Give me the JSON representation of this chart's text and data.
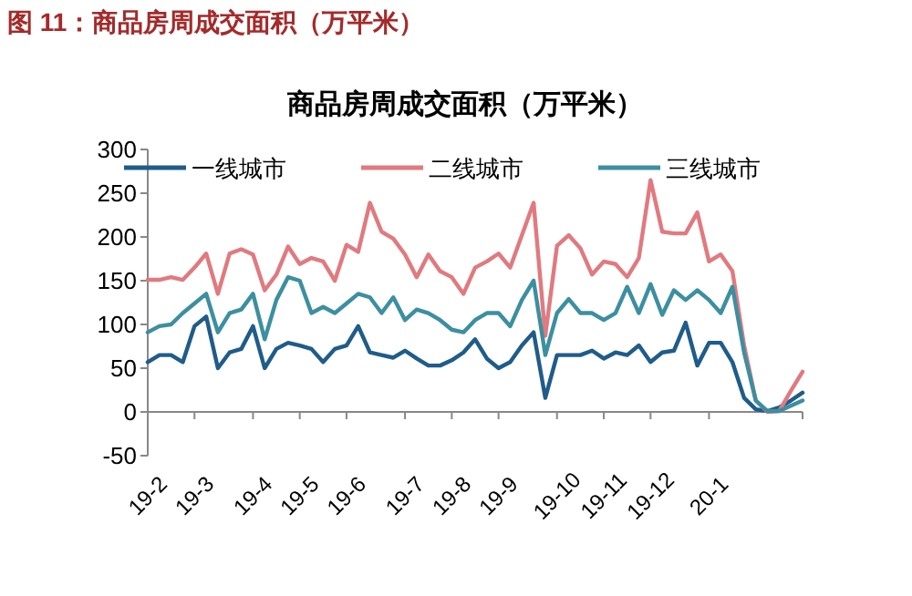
{
  "chart_data": {
    "type": "line",
    "title": "图 11：商品房周成交面积（万平米）",
    "subtitle": "商品房周成交面积（万平米）",
    "categories": [
      "19-2",
      null,
      null,
      null,
      "19-3",
      null,
      null,
      null,
      null,
      "19-4",
      null,
      null,
      null,
      "19-5",
      null,
      null,
      null,
      "19-6",
      null,
      null,
      null,
      null,
      "19-7",
      null,
      null,
      null,
      "19-8",
      null,
      null,
      null,
      "19-9",
      null,
      null,
      null,
      null,
      "19-10",
      null,
      null,
      null,
      "19-11",
      null,
      null,
      null,
      "19-12",
      null,
      null,
      null,
      null,
      "20-1",
      null,
      null,
      null,
      null,
      null,
      null,
      null,
      null
    ],
    "series": [
      {
        "name": "一线城市",
        "color": "#1f5c8a",
        "values": [
          57,
          65,
          65,
          57,
          98,
          109,
          50,
          68,
          72,
          98,
          50,
          72,
          79,
          76,
          72,
          57,
          72,
          76,
          98,
          68,
          65,
          62,
          70,
          61,
          53,
          53,
          59,
          68,
          83,
          61,
          50,
          57,
          76,
          91,
          16,
          65,
          65,
          65,
          70,
          61,
          68,
          65,
          76,
          57,
          68,
          70,
          102,
          53,
          79,
          79,
          57,
          16,
          3,
          1,
          5,
          13,
          22
        ]
      },
      {
        "name": "二线城市",
        "color": "#e07a7f",
        "values": [
          151,
          151,
          154,
          151,
          165,
          181,
          135,
          181,
          186,
          180,
          139,
          157,
          189,
          169,
          176,
          172,
          150,
          191,
          183,
          239,
          206,
          198,
          180,
          154,
          180,
          161,
          154,
          135,
          165,
          172,
          181,
          165,
          202,
          239,
          87,
          190,
          202,
          187,
          157,
          172,
          169,
          154,
          176,
          265,
          206,
          204,
          204,
          228,
          172,
          180,
          161,
          76,
          13,
          0,
          1,
          24,
          46
        ]
      },
      {
        "name": "三线城市",
        "color": "#3c8fa0",
        "values": [
          91,
          98,
          100,
          113,
          124,
          135,
          91,
          113,
          117,
          135,
          83,
          128,
          154,
          150,
          113,
          120,
          113,
          124,
          135,
          131,
          113,
          131,
          105,
          117,
          113,
          105,
          94,
          91,
          105,
          113,
          113,
          98,
          128,
          150,
          65,
          113,
          129,
          113,
          113,
          105,
          113,
          143,
          113,
          146,
          111,
          139,
          128,
          139,
          128,
          113,
          143,
          68,
          13,
          1,
          1,
          7,
          13
        ]
      }
    ],
    "ylim": [
      -50,
      300
    ],
    "yticks": [
      -50,
      0,
      50,
      100,
      150,
      200,
      250,
      300
    ],
    "legend": "top"
  }
}
